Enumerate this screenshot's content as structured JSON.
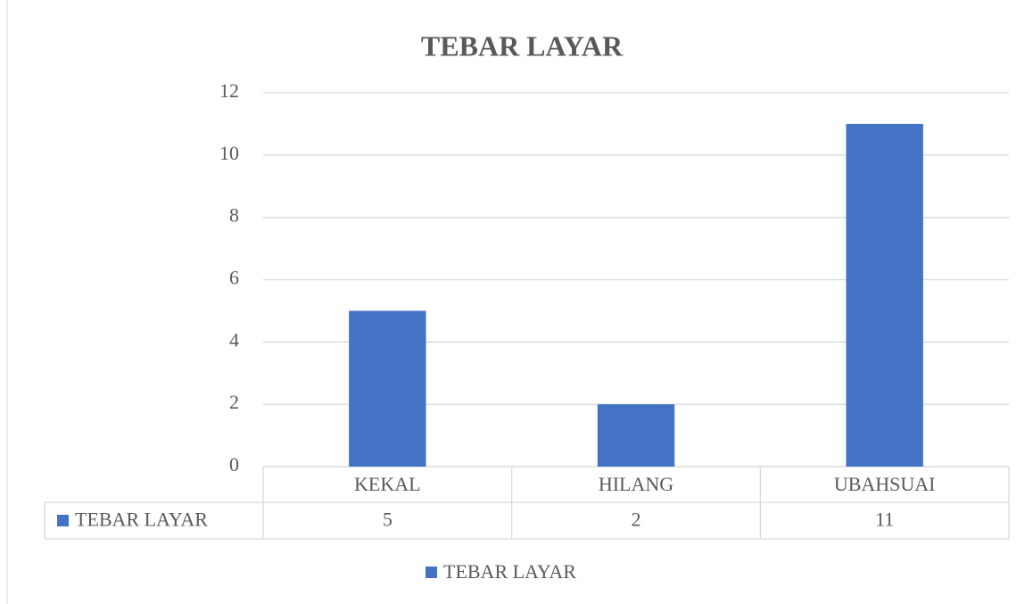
{
  "chart_data": {
    "type": "bar",
    "title": "TEBAR LAYAR",
    "categories": [
      "KEKAL",
      "HILANG",
      "UBAHSUAI"
    ],
    "series": [
      {
        "name": "TEBAR LAYAR",
        "color": "#4472c4",
        "values": [
          5,
          2,
          11
        ]
      }
    ],
    "ylim": [
      0,
      12
    ],
    "yticks": [
      0,
      2,
      4,
      6,
      8,
      10,
      12
    ],
    "grid": true,
    "legend": "bottom",
    "data_table": true
  }
}
